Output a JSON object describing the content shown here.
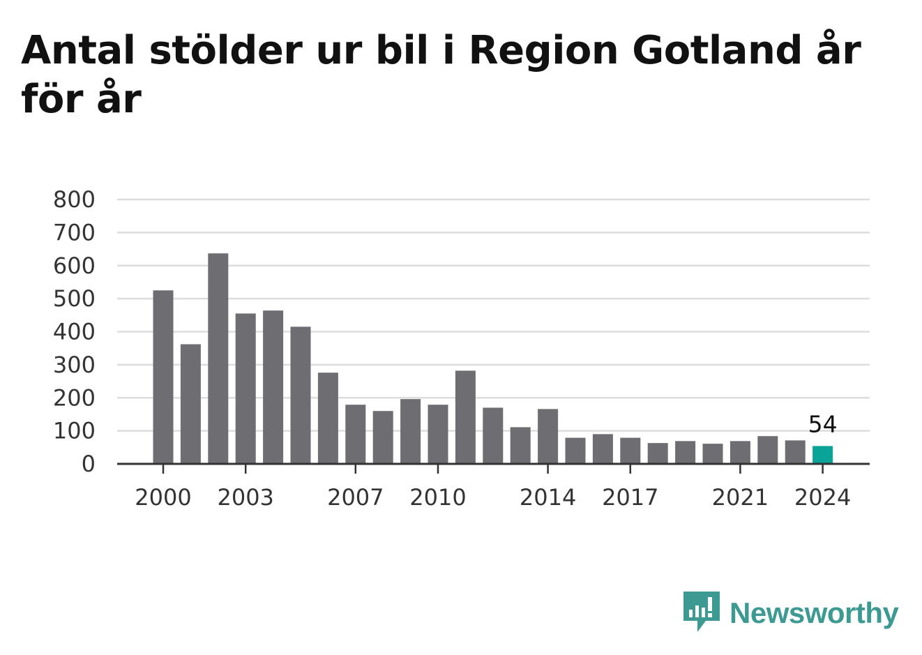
{
  "title": "Antal stölder ur bil i Region Gotland år för år",
  "brand": {
    "name": "Newsworthy",
    "color": "#3d9a93"
  },
  "chart_data": {
    "type": "bar",
    "categories": [
      2000,
      2001,
      2002,
      2003,
      2004,
      2005,
      2006,
      2007,
      2008,
      2009,
      2010,
      2011,
      2012,
      2013,
      2014,
      2015,
      2016,
      2017,
      2018,
      2019,
      2020,
      2021,
      2022,
      2023,
      2024
    ],
    "values": [
      525,
      362,
      637,
      455,
      464,
      415,
      276,
      179,
      160,
      196,
      179,
      282,
      170,
      111,
      166,
      79,
      90,
      79,
      63,
      69,
      61,
      69,
      84,
      71,
      54
    ],
    "x_tick_labels": [
      "2000",
      "2003",
      "2007",
      "2010",
      "2014",
      "2017",
      "2021",
      "2024"
    ],
    "y_ticks": [
      0,
      100,
      200,
      300,
      400,
      500,
      600,
      700,
      800
    ],
    "ylim": [
      0,
      800
    ],
    "grid": true,
    "highlight": {
      "index": 24,
      "label": "54"
    },
    "colors": {
      "bar": "#6e6d72",
      "highlight": "#0aa398",
      "grid": "#dddddd",
      "axis": "#333333"
    }
  }
}
